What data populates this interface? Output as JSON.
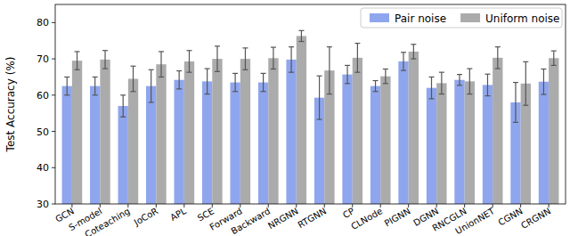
{
  "chart_data": {
    "type": "bar",
    "categories": [
      "GCN",
      "S-model",
      "Coteaching",
      "JoCoR",
      "APL",
      "SCE",
      "Forward",
      "Backward",
      "NRGNN",
      "RTGNN",
      "CP",
      "CLNode",
      "PIGNN",
      "DGNN",
      "RNCGLN",
      "UnionNET",
      "CGNN",
      "CRGNN"
    ],
    "series": [
      {
        "name": "Pair noise",
        "color": "#8fa6ee",
        "values": [
          62.5,
          62.5,
          57,
          62.5,
          64.2,
          63.8,
          63.5,
          63.5,
          69.8,
          59.3,
          65.7,
          62.5,
          69.3,
          62,
          64.2,
          62.8,
          58,
          63.7
        ],
        "errors": [
          2.5,
          2.5,
          3,
          4.5,
          2.5,
          3.5,
          2.5,
          2.5,
          3.5,
          6,
          2.5,
          1.5,
          2.5,
          3,
          1.5,
          3,
          5.5,
          3.5
        ]
      },
      {
        "name": "Uniform noise",
        "color": "#ababab",
        "values": [
          69.5,
          69.8,
          64.5,
          68.5,
          69.3,
          70,
          70,
          70.2,
          76.3,
          66.8,
          70.3,
          65.2,
          72,
          63.3,
          63.8,
          70.3,
          63.2,
          70.2
        ],
        "errors": [
          2.5,
          2.5,
          3.5,
          3.5,
          3,
          3.5,
          3,
          3,
          1.5,
          6.5,
          4,
          2,
          2,
          3,
          3.5,
          3,
          6,
          2
        ]
      }
    ],
    "ylabel": "Test Accuracy (%)",
    "ylim": [
      30,
      85
    ],
    "yticks": [
      30,
      40,
      50,
      60,
      70,
      80
    ],
    "legend": "upper right",
    "grid": false
  }
}
